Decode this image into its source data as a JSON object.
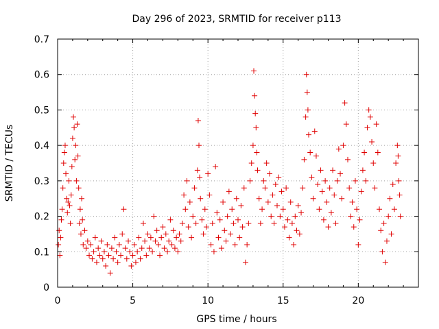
{
  "chart_data": {
    "type": "scatter",
    "title": "Day 296 of 2023, SRMTID for receiver p113",
    "xlabel": "GPS time / hours",
    "ylabel": "SRMTID / TECUs",
    "xlim": [
      0,
      24
    ],
    "ylim": [
      0,
      0.7
    ],
    "xticks": [
      "0",
      "5",
      "10",
      "15",
      "20"
    ],
    "yticks": [
      "0",
      "0.1",
      "0.2",
      "0.3",
      "0.4",
      "0.5",
      "0.6",
      "0.7"
    ],
    "grid": true,
    "marker": "plus",
    "color": "#e00000",
    "series": [
      {
        "name": "SRMTID",
        "points": [
          [
            0.05,
            0.12
          ],
          [
            0.1,
            0.16
          ],
          [
            0.15,
            0.09
          ],
          [
            0.2,
            0.14
          ],
          [
            0.25,
            0.19
          ],
          [
            0.3,
            0.22
          ],
          [
            0.35,
            0.28
          ],
          [
            0.4,
            0.35
          ],
          [
            0.45,
            0.38
          ],
          [
            0.5,
            0.4
          ],
          [
            0.55,
            0.32
          ],
          [
            0.6,
            0.25
          ],
          [
            0.65,
            0.21
          ],
          [
            0.7,
            0.24
          ],
          [
            0.75,
            0.3
          ],
          [
            0.8,
            0.23
          ],
          [
            0.85,
            0.18
          ],
          [
            0.9,
            0.26
          ],
          [
            0.95,
            0.34
          ],
          [
            1.0,
            0.42
          ],
          [
            1.05,
            0.48
          ],
          [
            1.1,
            0.45
          ],
          [
            1.15,
            0.36
          ],
          [
            1.2,
            0.4
          ],
          [
            1.25,
            0.3
          ],
          [
            1.3,
            0.46
          ],
          [
            1.35,
            0.37
          ],
          [
            1.4,
            0.28
          ],
          [
            1.45,
            0.18
          ],
          [
            1.5,
            0.22
          ],
          [
            1.55,
            0.15
          ],
          [
            1.6,
            0.25
          ],
          [
            1.65,
            0.19
          ],
          [
            1.7,
            0.12
          ],
          [
            1.8,
            0.16
          ],
          [
            1.9,
            0.11
          ],
          [
            2.0,
            0.13
          ],
          [
            2.1,
            0.09
          ],
          [
            2.2,
            0.12
          ],
          [
            2.3,
            0.08
          ],
          [
            2.4,
            0.1
          ],
          [
            2.5,
            0.14
          ],
          [
            2.6,
            0.07
          ],
          [
            2.7,
            0.11
          ],
          [
            2.8,
            0.09
          ],
          [
            2.9,
            0.13
          ],
          [
            3.0,
            0.08
          ],
          [
            3.1,
            0.1
          ],
          [
            3.2,
            0.06
          ],
          [
            3.3,
            0.12
          ],
          [
            3.4,
            0.09
          ],
          [
            3.5,
            0.04
          ],
          [
            3.6,
            0.11
          ],
          [
            3.7,
            0.08
          ],
          [
            3.8,
            0.14
          ],
          [
            3.9,
            0.1
          ],
          [
            4.0,
            0.07
          ],
          [
            4.1,
            0.12
          ],
          [
            4.2,
            0.09
          ],
          [
            4.3,
            0.15
          ],
          [
            4.4,
            0.22
          ],
          [
            4.5,
            0.11
          ],
          [
            4.6,
            0.08
          ],
          [
            4.7,
            0.13
          ],
          [
            4.8,
            0.1
          ],
          [
            4.9,
            0.06
          ],
          [
            5.0,
            0.09
          ],
          [
            5.1,
            0.12
          ],
          [
            5.2,
            0.07
          ],
          [
            5.3,
            0.1
          ],
          [
            5.4,
            0.14
          ],
          [
            5.5,
            0.08
          ],
          [
            5.6,
            0.11
          ],
          [
            5.7,
            0.18
          ],
          [
            5.8,
            0.13
          ],
          [
            5.9,
            0.09
          ],
          [
            6.0,
            0.15
          ],
          [
            6.1,
            0.11
          ],
          [
            6.2,
            0.14
          ],
          [
            6.3,
            0.1
          ],
          [
            6.4,
            0.2
          ],
          [
            6.5,
            0.13
          ],
          [
            6.6,
            0.16
          ],
          [
            6.7,
            0.12
          ],
          [
            6.8,
            0.09
          ],
          [
            6.9,
            0.14
          ],
          [
            7.0,
            0.17
          ],
          [
            7.1,
            0.11
          ],
          [
            7.2,
            0.15
          ],
          [
            7.3,
            0.1
          ],
          [
            7.4,
            0.13
          ],
          [
            7.5,
            0.19
          ],
          [
            7.6,
            0.12
          ],
          [
            7.7,
            0.16
          ],
          [
            7.8,
            0.11
          ],
          [
            7.9,
            0.14
          ],
          [
            8.0,
            0.1
          ],
          [
            8.1,
            0.15
          ],
          [
            8.2,
            0.13
          ],
          [
            8.3,
            0.18
          ],
          [
            8.4,
            0.26
          ],
          [
            8.5,
            0.22
          ],
          [
            8.6,
            0.3
          ],
          [
            8.7,
            0.17
          ],
          [
            8.8,
            0.24
          ],
          [
            8.9,
            0.14
          ],
          [
            9.0,
            0.2
          ],
          [
            9.1,
            0.28
          ],
          [
            9.2,
            0.18
          ],
          [
            9.3,
            0.33
          ],
          [
            9.35,
            0.47
          ],
          [
            9.4,
            0.4
          ],
          [
            9.45,
            0.31
          ],
          [
            9.5,
            0.25
          ],
          [
            9.6,
            0.19
          ],
          [
            9.7,
            0.15
          ],
          [
            9.8,
            0.22
          ],
          [
            9.9,
            0.17
          ],
          [
            10.0,
            0.32
          ],
          [
            10.1,
            0.26
          ],
          [
            10.2,
            0.12
          ],
          [
            10.3,
            0.18
          ],
          [
            10.4,
            0.1
          ],
          [
            10.5,
            0.34
          ],
          [
            10.6,
            0.21
          ],
          [
            10.7,
            0.14
          ],
          [
            10.8,
            0.19
          ],
          [
            10.9,
            0.11
          ],
          [
            11.0,
            0.24
          ],
          [
            11.1,
            0.16
          ],
          [
            11.2,
            0.13
          ],
          [
            11.3,
            0.2
          ],
          [
            11.4,
            0.27
          ],
          [
            11.5,
            0.15
          ],
          [
            11.6,
            0.22
          ],
          [
            11.7,
            0.18
          ],
          [
            11.8,
            0.12
          ],
          [
            11.9,
            0.25
          ],
          [
            12.0,
            0.19
          ],
          [
            12.1,
            0.14
          ],
          [
            12.2,
            0.23
          ],
          [
            12.3,
            0.17
          ],
          [
            12.4,
            0.28
          ],
          [
            12.5,
            0.07
          ],
          [
            12.6,
            0.12
          ],
          [
            12.7,
            0.18
          ],
          [
            12.8,
            0.3
          ],
          [
            12.9,
            0.35
          ],
          [
            13.0,
            0.4
          ],
          [
            13.05,
            0.61
          ],
          [
            13.1,
            0.54
          ],
          [
            13.15,
            0.49
          ],
          [
            13.2,
            0.45
          ],
          [
            13.25,
            0.38
          ],
          [
            13.3,
            0.33
          ],
          [
            13.4,
            0.25
          ],
          [
            13.5,
            0.18
          ],
          [
            13.6,
            0.22
          ],
          [
            13.7,
            0.3
          ],
          [
            13.8,
            0.28
          ],
          [
            13.9,
            0.35
          ],
          [
            14.0,
            0.24
          ],
          [
            14.1,
            0.32
          ],
          [
            14.2,
            0.2
          ],
          [
            14.3,
            0.26
          ],
          [
            14.4,
            0.18
          ],
          [
            14.5,
            0.29
          ],
          [
            14.6,
            0.23
          ],
          [
            14.7,
            0.31
          ],
          [
            14.8,
            0.2
          ],
          [
            14.9,
            0.27
          ],
          [
            15.0,
            0.22
          ],
          [
            15.1,
            0.17
          ],
          [
            15.2,
            0.28
          ],
          [
            15.3,
            0.19
          ],
          [
            15.4,
            0.14
          ],
          [
            15.5,
            0.24
          ],
          [
            15.6,
            0.18
          ],
          [
            15.7,
            0.12
          ],
          [
            15.8,
            0.2
          ],
          [
            15.9,
            0.16
          ],
          [
            16.0,
            0.23
          ],
          [
            16.1,
            0.15
          ],
          [
            16.2,
            0.21
          ],
          [
            16.3,
            0.28
          ],
          [
            16.4,
            0.36
          ],
          [
            16.5,
            0.48
          ],
          [
            16.55,
            0.6
          ],
          [
            16.6,
            0.55
          ],
          [
            16.65,
            0.5
          ],
          [
            16.7,
            0.43
          ],
          [
            16.8,
            0.38
          ],
          [
            16.9,
            0.31
          ],
          [
            17.0,
            0.25
          ],
          [
            17.1,
            0.44
          ],
          [
            17.2,
            0.37
          ],
          [
            17.3,
            0.29
          ],
          [
            17.4,
            0.22
          ],
          [
            17.5,
            0.33
          ],
          [
            17.6,
            0.27
          ],
          [
            17.7,
            0.19
          ],
          [
            17.8,
            0.3
          ],
          [
            17.9,
            0.24
          ],
          [
            18.0,
            0.17
          ],
          [
            18.1,
            0.28
          ],
          [
            18.2,
            0.21
          ],
          [
            18.3,
            0.33
          ],
          [
            18.4,
            0.26
          ],
          [
            18.5,
            0.18
          ],
          [
            18.6,
            0.3
          ],
          [
            18.7,
            0.39
          ],
          [
            18.8,
            0.32
          ],
          [
            18.9,
            0.25
          ],
          [
            19.0,
            0.4
          ],
          [
            19.1,
            0.52
          ],
          [
            19.2,
            0.46
          ],
          [
            19.3,
            0.36
          ],
          [
            19.4,
            0.28
          ],
          [
            19.5,
            0.2
          ],
          [
            19.6,
            0.24
          ],
          [
            19.7,
            0.17
          ],
          [
            19.8,
            0.3
          ],
          [
            19.9,
            0.22
          ],
          [
            20.0,
            0.12
          ],
          [
            20.1,
            0.19
          ],
          [
            20.2,
            0.27
          ],
          [
            20.3,
            0.33
          ],
          [
            20.4,
            0.38
          ],
          [
            20.5,
            0.3
          ],
          [
            20.6,
            0.45
          ],
          [
            20.7,
            0.5
          ],
          [
            20.8,
            0.48
          ],
          [
            20.9,
            0.41
          ],
          [
            21.0,
            0.35
          ],
          [
            21.1,
            0.28
          ],
          [
            21.2,
            0.46
          ],
          [
            21.3,
            0.38
          ],
          [
            21.4,
            0.22
          ],
          [
            21.5,
            0.16
          ],
          [
            21.6,
            0.1
          ],
          [
            21.7,
            0.18
          ],
          [
            21.8,
            0.07
          ],
          [
            21.9,
            0.13
          ],
          [
            22.0,
            0.2
          ],
          [
            22.1,
            0.25
          ],
          [
            22.2,
            0.15
          ],
          [
            22.3,
            0.29
          ],
          [
            22.4,
            0.22
          ],
          [
            22.5,
            0.35
          ],
          [
            22.6,
            0.4
          ],
          [
            22.65,
            0.37
          ],
          [
            22.7,
            0.3
          ],
          [
            22.75,
            0.26
          ],
          [
            22.8,
            0.2
          ]
        ]
      }
    ]
  }
}
